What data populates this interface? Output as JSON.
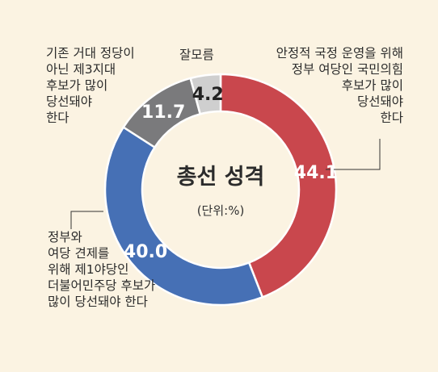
{
  "chart_data": {
    "type": "pie",
    "style": "donut",
    "title": "총선 성격",
    "subtitle": "(단위:%)",
    "categories": [
      "안정적 국정 운영을 위해\n정부 여당인 국민의힘\n후보가 많이\n당선돼야\n한다",
      "정부와\n여당 견제를\n위해 제1야당인\n더불어민주당 후보가\n많이 당선돼야 한다",
      "기존 거대 정당이\n아닌 제3지대\n후보가 많이\n당선돼야\n한다",
      "잘모름"
    ],
    "values": [
      44.1,
      40.0,
      11.7,
      4.2
    ],
    "value_labels": [
      "44.1",
      "40.0",
      "11.7",
      "4.2"
    ],
    "colors": [
      "#c9474d",
      "#4670b5",
      "#7a7a7c",
      "#cfcfcf"
    ],
    "value_label_colors": [
      "#ffffff",
      "#ffffff",
      "#ffffff",
      "#222222"
    ]
  }
}
